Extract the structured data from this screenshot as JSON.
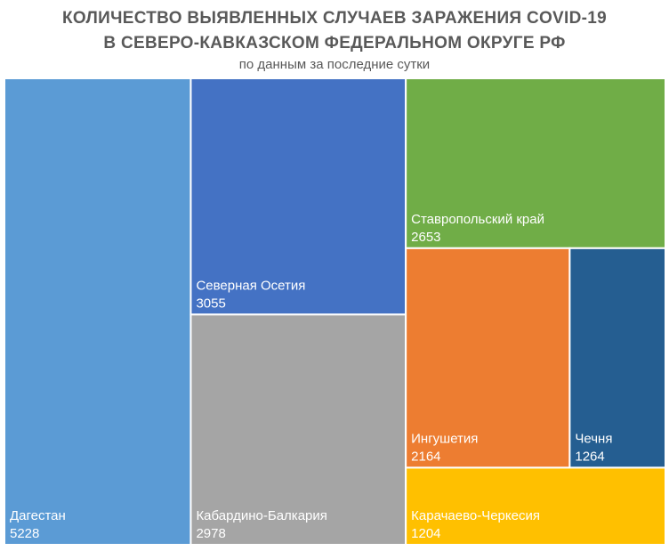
{
  "chart_data": {
    "type": "treemap",
    "title_line1": "КОЛИЧЕСТВО ВЫЯВЛЕННЫХ СЛУЧАЕВ ЗАРАЖЕНИЯ COVID-19",
    "title_line2": "В СЕВЕРО-КАВКАЗСКОМ ФЕДЕРАЛЬНОМ ОКРУГЕ РФ",
    "subtitle": "по данным за последние сутки",
    "items": [
      {
        "name": "Дагестан",
        "value": 5228,
        "color": "#5B9BD5"
      },
      {
        "name": "Северная Осетия",
        "value": 3055,
        "color": "#4472C4"
      },
      {
        "name": "Кабардино-Балкария",
        "value": 2978,
        "color": "#A5A5A5"
      },
      {
        "name": "Ставропольский край",
        "value": 2653,
        "color": "#70AD47"
      },
      {
        "name": "Ингушетия",
        "value": 2164,
        "color": "#ED7D31"
      },
      {
        "name": "Чечня",
        "value": 1264,
        "color": "#255E91"
      },
      {
        "name": "Карачаево-Черкесия",
        "value": 1204,
        "color": "#FFC000"
      }
    ]
  }
}
